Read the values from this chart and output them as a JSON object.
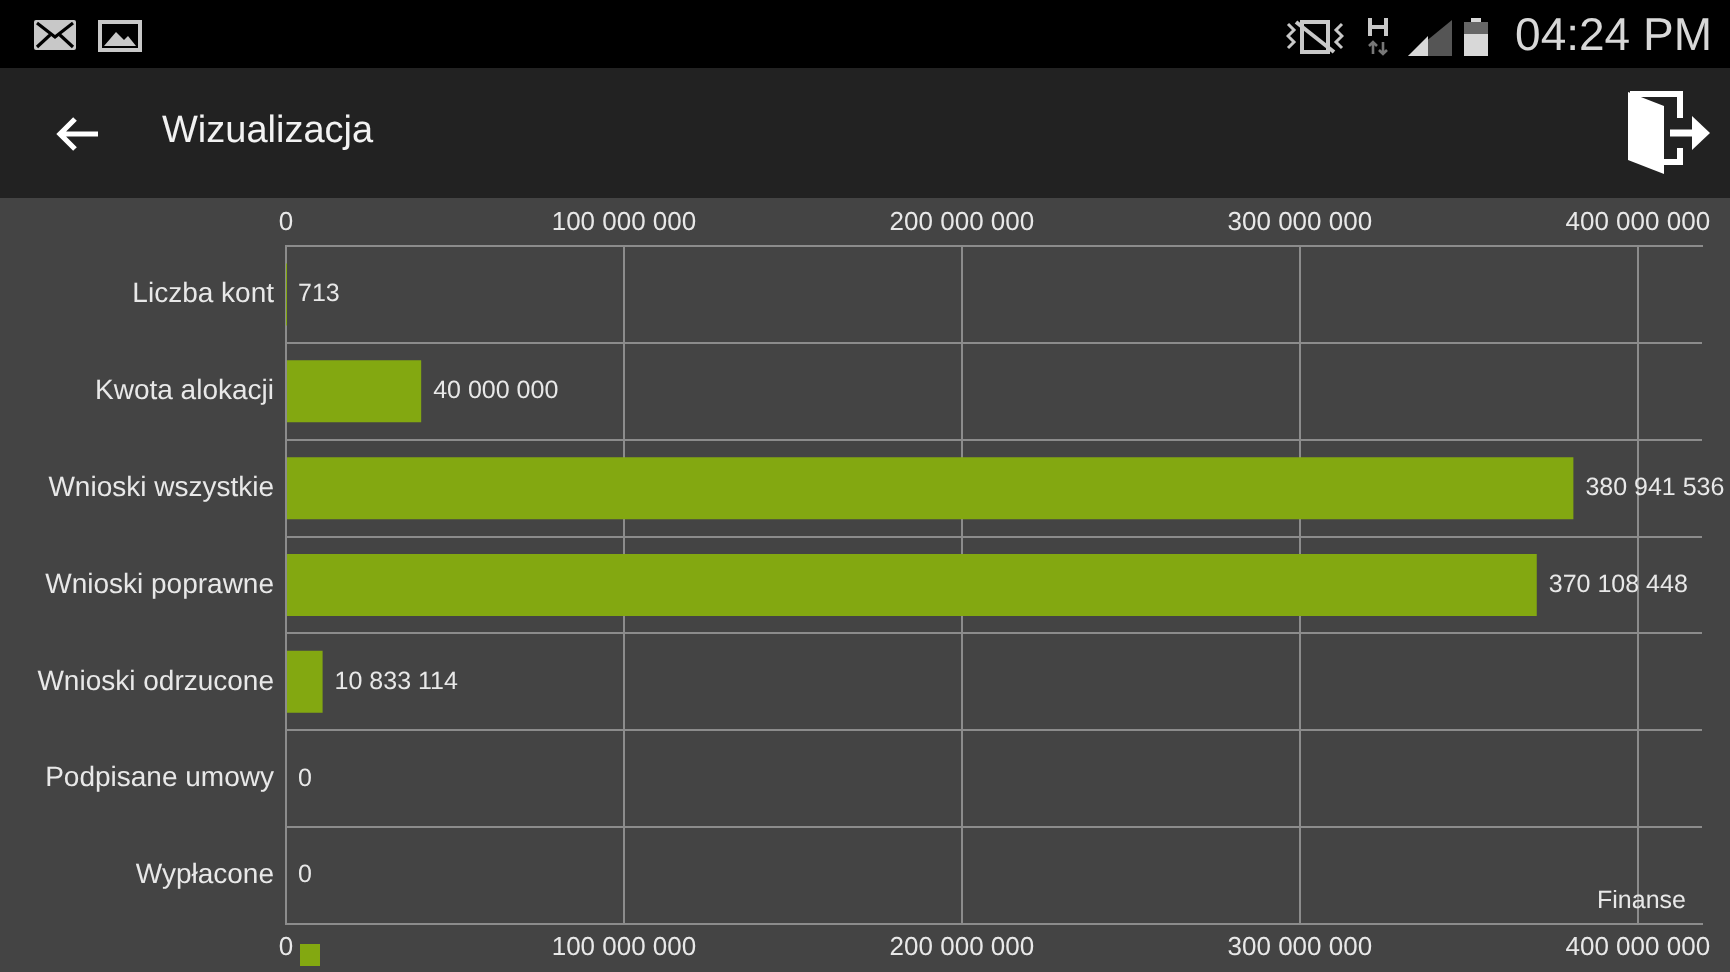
{
  "chart_data": {
    "type": "bar",
    "orientation": "horizontal",
    "title": "Wizualizacja",
    "categories": [
      "Liczba kont",
      "Kwota alokacji",
      "Wnioski wszystkie",
      "Wnioski poprawne",
      "Wnioski odrzucone",
      "Podpisane umowy",
      "Wypłacone"
    ],
    "values": [
      713,
      40000000,
      380941536,
      370108448,
      10833114,
      0,
      0
    ],
    "value_labels": [
      "713",
      "40 000 000",
      "380 941 536",
      "370 108 448",
      "10 833 114",
      "0",
      "0"
    ],
    "color": "#83a811",
    "xlim": [
      0,
      419000000
    ],
    "xticks": [
      0,
      {
        "value": 100000000,
        "label": "100 000 000"
      },
      {
        "value": 200000000,
        "label": "200 000 000"
      },
      {
        "value": 300000000,
        "label": "300 000 000"
      },
      {
        "value": 400000000,
        "label": "400 000 000"
      }
    ],
    "x2lim": [
      0,
      419000000
    ],
    "x2ticks": [
      0,
      {
        "value": 100000000,
        "label": "100 000 000"
      },
      {
        "value": 200000000,
        "label": "200 000 000"
      },
      {
        "value": 300000000,
        "label": "300 000 000"
      },
      {
        "value": 400000000,
        "label": "400 000 000"
      }
    ],
    "grid": true,
    "annotations": [
      "Finanse",
      "04:24 PM"
    ]
  }
}
